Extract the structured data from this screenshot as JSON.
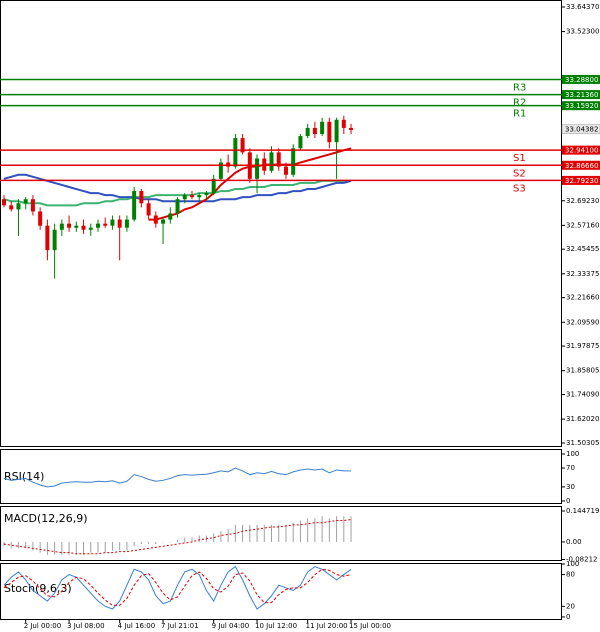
{
  "chart_data": [
    {
      "type": "candlestick",
      "categories": [
        null,
        null,
        null,
        "2 Jul 00:00",
        null,
        null,
        null,
        null,
        null,
        "3 Jul 08:00",
        null,
        null,
        null,
        null,
        null,
        null,
        "4 Jul 16:00",
        null,
        null,
        null,
        null,
        null,
        "7 Jul 21:01",
        null,
        null,
        null,
        null,
        null,
        null,
        "9 Jul 04:00",
        null,
        null,
        null,
        null,
        null,
        "10 Jul 12:00",
        null,
        null,
        null,
        null,
        null,
        null,
        "11 Jul 20:00",
        null,
        null,
        null,
        null,
        null,
        "15 Jul 00:00"
      ],
      "open": [
        32.7,
        32.67,
        32.65,
        32.68,
        32.7,
        32.64,
        32.57,
        32.45,
        32.55,
        32.58,
        32.56,
        32.57,
        32.55,
        32.56,
        32.58,
        32.57,
        32.6,
        32.56,
        32.6,
        32.74,
        32.68,
        32.62,
        32.58,
        32.6,
        32.63,
        32.7,
        32.72,
        32.71,
        32.72,
        32.73,
        32.8,
        32.88,
        32.86,
        33.0,
        32.93,
        32.8,
        32.9,
        32.84,
        32.93,
        32.86,
        32.82,
        32.95,
        33.01,
        33.05,
        33.02,
        33.08,
        32.98,
        33.09,
        33.05
      ],
      "high": [
        32.72,
        32.69,
        32.7,
        32.71,
        32.72,
        32.66,
        32.6,
        32.58,
        32.6,
        32.62,
        32.59,
        32.6,
        32.58,
        32.6,
        32.61,
        32.62,
        32.62,
        32.62,
        32.76,
        32.75,
        32.7,
        32.64,
        32.61,
        32.66,
        32.71,
        32.73,
        32.74,
        32.73,
        32.74,
        32.82,
        32.9,
        32.92,
        33.02,
        33.02,
        32.95,
        32.92,
        32.93,
        32.96,
        32.95,
        32.88,
        32.97,
        33.02,
        33.07,
        33.08,
        33.1,
        33.1,
        33.1,
        33.11,
        33.07
      ],
      "low": [
        32.66,
        32.64,
        32.52,
        32.65,
        32.62,
        32.55,
        32.4,
        32.31,
        32.52,
        32.54,
        32.54,
        32.53,
        32.52,
        32.54,
        32.56,
        32.55,
        32.4,
        32.54,
        32.59,
        32.66,
        32.6,
        32.56,
        32.48,
        32.58,
        32.61,
        32.68,
        32.7,
        32.69,
        32.7,
        32.72,
        32.79,
        32.83,
        32.85,
        32.92,
        32.78,
        32.73,
        32.82,
        32.83,
        32.84,
        32.8,
        32.81,
        32.94,
        33.0,
        33.0,
        33.01,
        32.95,
        32.8,
        33.02,
        33.02
      ],
      "close": [
        32.67,
        32.65,
        32.68,
        32.7,
        32.64,
        32.57,
        32.45,
        32.55,
        32.58,
        32.56,
        32.57,
        32.55,
        32.56,
        32.58,
        32.57,
        32.6,
        32.56,
        32.6,
        32.74,
        32.68,
        32.62,
        32.58,
        32.6,
        32.63,
        32.7,
        32.72,
        32.71,
        32.72,
        32.73,
        32.8,
        32.88,
        32.86,
        33.0,
        32.93,
        32.8,
        32.9,
        32.84,
        32.93,
        32.86,
        32.82,
        32.95,
        33.01,
        33.05,
        33.02,
        33.08,
        32.98,
        33.09,
        33.05,
        33.04
      ],
      "up_color": "#008000",
      "down_color": "#e00000",
      "lines": [
        {
          "color": "#3cb371",
          "values": [
            32.7,
            32.69,
            32.69,
            32.68,
            32.68,
            32.68,
            32.67,
            32.67,
            32.67,
            32.67,
            32.67,
            32.68,
            32.68,
            32.68,
            32.69,
            32.69,
            32.7,
            32.7,
            32.71,
            32.71,
            32.71,
            32.72,
            32.72,
            32.72,
            32.72,
            32.72,
            32.72,
            32.73,
            32.73,
            32.73,
            32.74,
            32.74,
            32.75,
            32.75,
            32.76,
            32.76,
            32.76,
            32.77,
            32.77,
            32.77,
            32.77,
            32.78,
            32.78,
            32.78,
            32.79,
            32.79,
            32.79,
            32.79,
            32.79
          ]
        },
        {
          "color": "#3050c0",
          "values": [
            32.8,
            32.81,
            32.82,
            32.82,
            32.81,
            32.8,
            32.79,
            32.78,
            32.77,
            32.76,
            32.75,
            32.74,
            32.73,
            32.73,
            32.72,
            32.72,
            32.71,
            32.71,
            32.71,
            32.7,
            32.7,
            32.7,
            32.69,
            32.69,
            32.69,
            32.69,
            32.69,
            32.69,
            32.69,
            32.69,
            32.7,
            32.7,
            32.7,
            32.71,
            32.71,
            32.72,
            32.72,
            32.72,
            32.73,
            32.73,
            32.74,
            32.74,
            32.75,
            32.75,
            32.76,
            32.77,
            32.78,
            32.78,
            32.79
          ]
        },
        {
          "color": "#e00000",
          "values": [
            null,
            null,
            null,
            null,
            null,
            null,
            null,
            null,
            null,
            null,
            null,
            null,
            null,
            null,
            null,
            null,
            null,
            null,
            null,
            null,
            32.6,
            32.6,
            32.61,
            32.62,
            32.63,
            32.65,
            32.66,
            32.68,
            32.7,
            32.73,
            32.77,
            32.8,
            32.83,
            32.85,
            32.86,
            32.86,
            32.87,
            32.87,
            32.87,
            32.87,
            32.87,
            32.88,
            32.89,
            32.9,
            32.91,
            32.92,
            32.93,
            32.94,
            32.95
          ]
        }
      ],
      "levels": [
        {
          "name": "R3",
          "price": {
            "value": 33.288,
            "label": "33.28800"
          },
          "color": "#008000"
        },
        {
          "name": "R2",
          "price": {
            "value": 33.2136,
            "label": "33.21360"
          },
          "color": "#008000"
        },
        {
          "name": "R1",
          "price": {
            "value": 33.1592,
            "label": "33.15920"
          },
          "color": "#008000"
        },
        {
          "name": "S1",
          "price": {
            "value": 32.941,
            "label": "32.94100"
          },
          "color": "#e00000"
        },
        {
          "name": "S2",
          "price": {
            "value": 32.8666,
            "label": "32.86660"
          },
          "color": "#e00000"
        },
        {
          "name": "S3",
          "price": {
            "value": 32.7923,
            "label": "32.79230"
          },
          "color": "#e00000"
        }
      ],
      "last_price": 33.04382,
      "ylim": [
        31.4834,
        33.6781
      ],
      "yticks": [
        {
          "value": 33.6437,
          "label": "33.64370"
        },
        {
          "value": 33.523,
          "label": "33.52300"
        },
        {
          "value": 32.6923,
          "label": "32.69230"
        },
        {
          "value": 32.5716,
          "label": "32.57160"
        },
        32.45455,
        32.33375,
        {
          "value": 32.2166,
          "label": "32.21660"
        },
        {
          "value": 32.0959,
          "label": "32.09590"
        },
        31.97875,
        31.85805,
        {
          "value": 31.7409,
          "label": "31.74090"
        },
        {
          "value": 31.6202,
          "label": "31.62020"
        },
        31.50305
      ]
    },
    {
      "type": "line",
      "title": "RSI(14)",
      "ylim": [
        -6.4,
        110.6
      ],
      "yticks": [
        100,
        70,
        30,
        0
      ],
      "series": [
        {
          "color": "#3a7fd0",
          "values": [
            48,
            44,
            46,
            48,
            40,
            34,
            30,
            32,
            38,
            40,
            41,
            40,
            40,
            42,
            41,
            43,
            38,
            42,
            56,
            52,
            46,
            42,
            44,
            48,
            54,
            56,
            55,
            56,
            57,
            60,
            64,
            62,
            70,
            64,
            56,
            60,
            58,
            63,
            58,
            56,
            62,
            66,
            68,
            66,
            68,
            60,
            66,
            64,
            64
          ]
        }
      ]
    },
    {
      "type": "macd",
      "title": "MACD(12,26,9)",
      "ylim": [
        -0.089,
        0.168
      ],
      "yticks": [
        0.144719,
        {
          "value": 0,
          "label": "0.00"
        },
        -0.08212
      ],
      "series": [
        {
          "kind": "histogram",
          "color": "#a0a0a0",
          "values": [
            -0.02,
            -0.03,
            -0.03,
            -0.03,
            -0.04,
            -0.05,
            -0.06,
            -0.06,
            -0.06,
            -0.06,
            -0.06,
            -0.06,
            -0.05,
            -0.05,
            -0.05,
            -0.04,
            -0.04,
            -0.04,
            -0.02,
            -0.01,
            -0.01,
            -0.01,
            0.0,
            0.0,
            0.01,
            0.02,
            0.02,
            0.03,
            0.03,
            0.04,
            0.05,
            0.06,
            0.08,
            0.08,
            0.08,
            0.08,
            0.08,
            0.08,
            0.08,
            0.08,
            0.09,
            0.1,
            0.11,
            0.11,
            0.12,
            0.11,
            0.12,
            0.12,
            0.12
          ]
        },
        {
          "kind": "line",
          "color": "#e00000",
          "values": [
            -0.01,
            -0.015,
            -0.02,
            -0.025,
            -0.03,
            -0.035,
            -0.04,
            -0.045,
            -0.05,
            -0.05,
            -0.055,
            -0.055,
            -0.055,
            -0.055,
            -0.05,
            -0.05,
            -0.045,
            -0.045,
            -0.04,
            -0.035,
            -0.03,
            -0.025,
            -0.02,
            -0.015,
            -0.01,
            -0.005,
            0.0,
            0.01,
            0.015,
            0.02,
            0.03,
            0.035,
            0.04,
            0.05,
            0.055,
            0.06,
            0.065,
            0.07,
            0.07,
            0.075,
            0.08,
            0.08,
            0.085,
            0.09,
            0.09,
            0.095,
            0.1,
            0.1,
            0.105
          ]
        }
      ]
    },
    {
      "type": "line",
      "title": "Stoch(9,6,3)",
      "ylim": [
        -5.8,
        101.9
      ],
      "yticks": [
        100,
        80,
        20,
        0
      ],
      "series": [
        {
          "color": "#3a7fd0",
          "values": [
            60,
            75,
            85,
            70,
            50,
            40,
            30,
            45,
            70,
            80,
            75,
            60,
            45,
            30,
            20,
            15,
            30,
            60,
            90,
            85,
            70,
            40,
            25,
            30,
            60,
            85,
            90,
            80,
            50,
            30,
            60,
            85,
            95,
            70,
            40,
            15,
            25,
            40,
            60,
            55,
            50,
            60,
            85,
            95,
            90,
            80,
            70,
            80,
            90
          ]
        },
        {
          "color": "#e00000",
          "dash": true,
          "values": [
            55,
            65,
            75,
            78,
            68,
            53,
            40,
            38,
            48,
            65,
            75,
            72,
            60,
            45,
            32,
            22,
            22,
            35,
            60,
            78,
            82,
            65,
            45,
            32,
            38,
            58,
            78,
            85,
            73,
            53,
            47,
            58,
            80,
            83,
            68,
            42,
            27,
            27,
            42,
            52,
            55,
            55,
            65,
            80,
            90,
            88,
            80,
            77,
            80
          ]
        }
      ]
    }
  ]
}
